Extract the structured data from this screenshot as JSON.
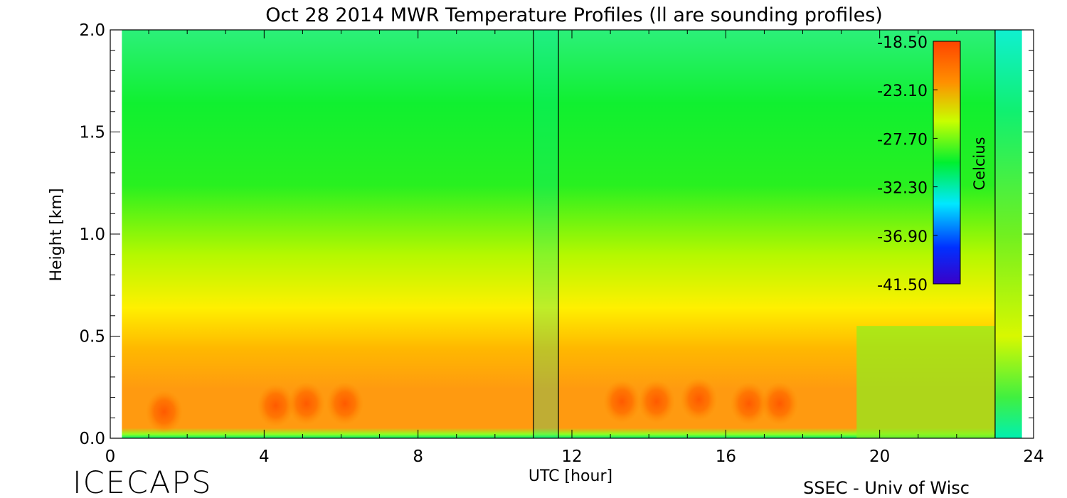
{
  "chart_data": {
    "type": "heatmap",
    "title": "Oct 28 2014 MWR Temperature Profiles (ll are sounding profiles)",
    "xlabel": "UTC [hour]",
    "ylabel": "Height [km]",
    "xlim": [
      0,
      24
    ],
    "ylim": [
      0.0,
      2.0
    ],
    "x_ticks": [
      "0",
      "4",
      "8",
      "12",
      "16",
      "20",
      "24"
    ],
    "y_ticks": [
      "0.0",
      "0.5",
      "1.0",
      "1.5",
      "2.0"
    ],
    "data_x_range": [
      0.3,
      23.7
    ],
    "sounding_profiles_utc": [
      11.0,
      11.65,
      23.0
    ],
    "colorbar": {
      "label": "Celcius",
      "range": [
        -41.5,
        -18.5
      ],
      "tick_labels": [
        "-18.50",
        "-23.10",
        "-27.70",
        "-32.30",
        "-36.90",
        "-41.50"
      ],
      "colors": [
        "#3a00c8",
        "#0030ff",
        "#00e8ff",
        "#00f030",
        "#f0ff00",
        "#ff9000",
        "#ff4400"
      ]
    },
    "warm_cores": [
      {
        "utc": 1.4,
        "height_km": 0.13,
        "temp_c": -19.8
      },
      {
        "utc": 4.3,
        "height_km": 0.16,
        "temp_c": -20.2
      },
      {
        "utc": 5.1,
        "height_km": 0.17,
        "temp_c": -20.2
      },
      {
        "utc": 6.1,
        "height_km": 0.17,
        "temp_c": -20.2
      },
      {
        "utc": 13.3,
        "height_km": 0.18,
        "temp_c": -19.3
      },
      {
        "utc": 14.2,
        "height_km": 0.18,
        "temp_c": -19.3
      },
      {
        "utc": 15.3,
        "height_km": 0.19,
        "temp_c": -19.3
      },
      {
        "utc": 16.6,
        "height_km": 0.17,
        "temp_c": -19.3
      },
      {
        "utc": 17.4,
        "height_km": 0.17,
        "temp_c": -19.3
      }
    ],
    "profile_temps_c": {
      "height_km": [
        0.0,
        0.02,
        0.1,
        0.2,
        0.3,
        0.4,
        0.5,
        0.6,
        0.7,
        0.9,
        1.2,
        1.5,
        1.8,
        2.0
      ],
      "temps_c": [
        -29,
        -24,
        -21,
        -21,
        -21.5,
        -22,
        -23,
        -24,
        -25,
        -26.5,
        -27.5,
        -28,
        -28.5,
        -29
      ]
    }
  },
  "footer": {
    "left": "ICECAPS",
    "right": "SSEC - Univ of Wisc"
  }
}
